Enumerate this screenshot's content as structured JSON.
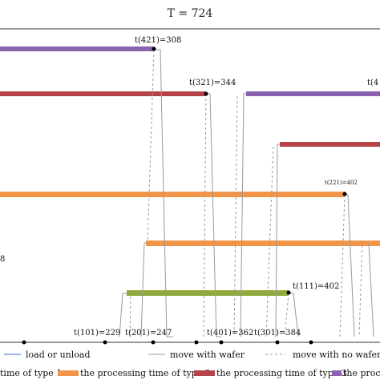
{
  "header": {
    "title": "T = 724"
  },
  "colors": {
    "type1": "#8faa3c",
    "type2": "#f29548",
    "type3": "#b54347",
    "type4": "#8b62b0",
    "path": "#9a9a9a",
    "load": "#5b8bd6",
    "frame": "#333333"
  },
  "timestamps": {
    "t421": "t(421)=308",
    "t321": "t(321)=344",
    "t4_cut": "t(4",
    "t221": "t(221)=402",
    "t111": "t(111)=402",
    "t101": "t(101)=229",
    "t201": "t(201)=247",
    "t401": "t(401)=362",
    "t301": "t(301)=384"
  },
  "left_edge_text": "8",
  "legend": {
    "load_unload": "load or unload",
    "move_with_wafer": "move with wafer",
    "move_no_wafer": "move with no wafer",
    "type1": "time of type 1",
    "type2": "the processing time of type 2",
    "type3": "the processing time of type 3",
    "type4": "the proc"
  }
}
